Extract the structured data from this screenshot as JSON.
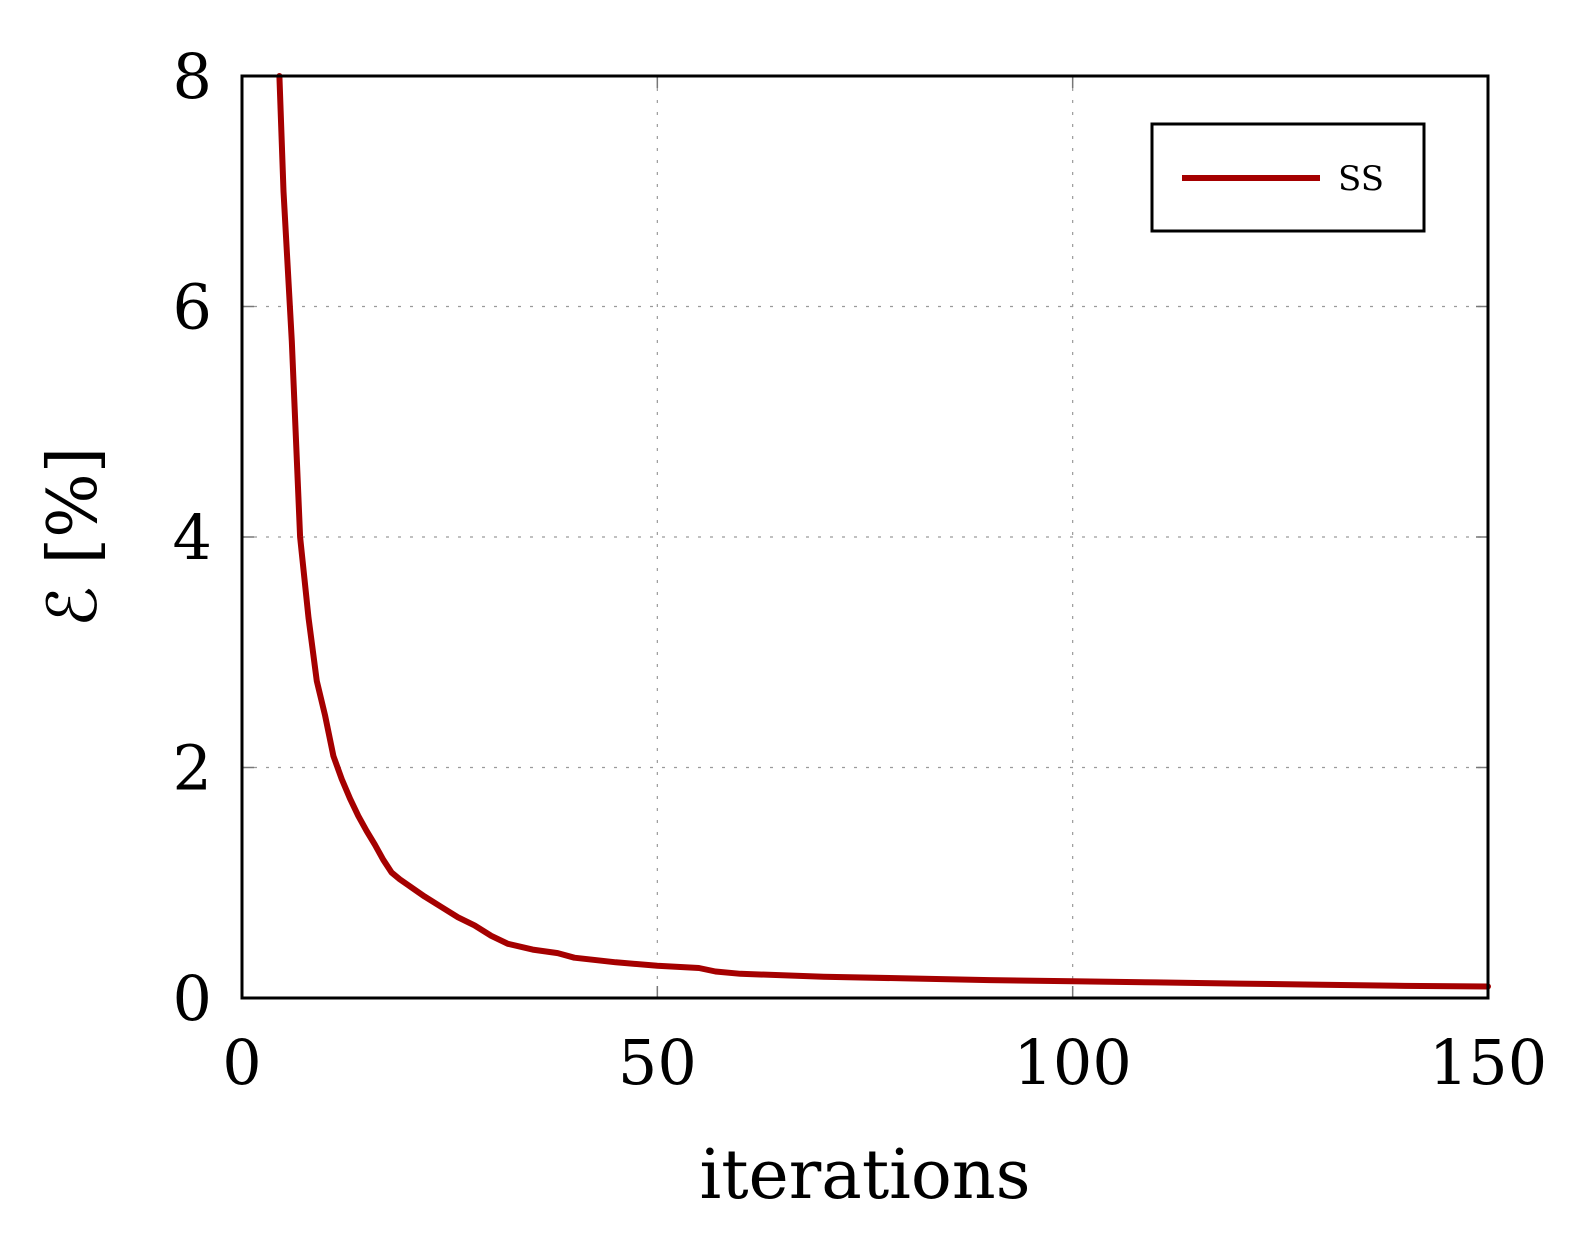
{
  "chart_data": {
    "type": "line",
    "xlabel": "iterations",
    "ylabel": "ℰ [%]",
    "xlim": [
      0,
      150
    ],
    "ylim": [
      0,
      8
    ],
    "xticks": [
      0,
      50,
      100,
      150
    ],
    "yticks": [
      0,
      2,
      4,
      6,
      8
    ],
    "grid": true,
    "legend_position": "top-right",
    "series": [
      {
        "name": "SS",
        "color": "#a50000",
        "x": [
          4.5,
          5,
          6,
          7,
          8,
          9,
          10,
          11,
          12,
          13,
          14,
          15,
          16,
          17,
          18,
          19,
          20,
          22,
          24,
          26,
          28,
          30,
          32,
          35,
          38,
          40,
          45,
          50,
          55,
          57,
          60,
          70,
          80,
          90,
          100,
          110,
          120,
          130,
          140,
          150
        ],
        "y": [
          8.0,
          7.0,
          5.7,
          4.0,
          3.3,
          2.75,
          2.45,
          2.1,
          1.9,
          1.73,
          1.58,
          1.45,
          1.33,
          1.2,
          1.09,
          1.03,
          0.98,
          0.88,
          0.79,
          0.7,
          0.63,
          0.54,
          0.47,
          0.42,
          0.39,
          0.35,
          0.31,
          0.28,
          0.26,
          0.23,
          0.21,
          0.185,
          0.17,
          0.155,
          0.145,
          0.135,
          0.125,
          0.115,
          0.105,
          0.1
        ]
      }
    ]
  }
}
